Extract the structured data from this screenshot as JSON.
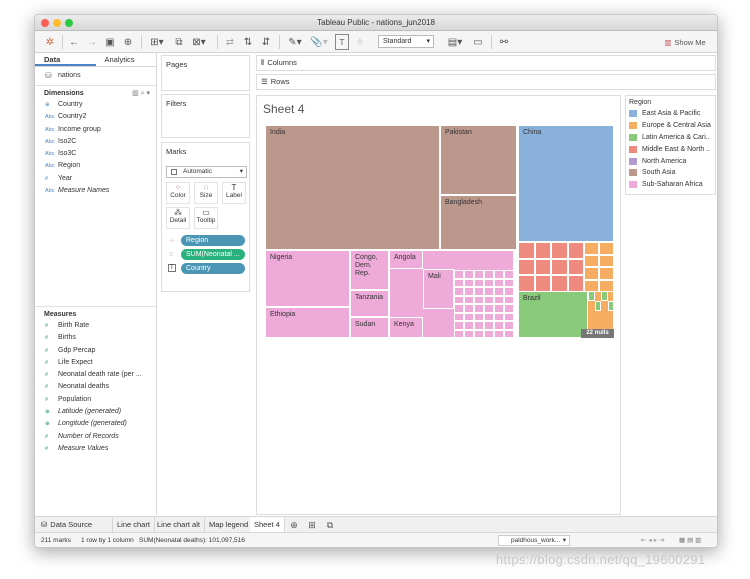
{
  "window": {
    "title": "Tableau Public - nations_jun2018"
  },
  "toolbar": {
    "mark_type_select": "Standard",
    "show_me_label": "Show Me"
  },
  "left_pane": {
    "tabs": [
      "Data",
      "Analytics"
    ],
    "datasource": "nations",
    "dimensions_title": "Dimensions",
    "dimensions": [
      {
        "icon": "globe-icon",
        "type": "geo",
        "label": "Country"
      },
      {
        "icon": "abc-icon",
        "type": "abc",
        "label": "Country2"
      },
      {
        "icon": "abc-icon",
        "type": "abc",
        "label": "Income group"
      },
      {
        "icon": "abc-icon",
        "type": "abc",
        "label": "Iso2C"
      },
      {
        "icon": "abc-icon",
        "type": "abc",
        "label": "Iso3C"
      },
      {
        "icon": "abc-icon",
        "type": "abc",
        "label": "Region"
      },
      {
        "icon": "number-icon",
        "type": "num",
        "label": "Year"
      },
      {
        "icon": "abc-icon",
        "type": "abc",
        "label": "Measure Names"
      }
    ],
    "measures_title": "Measures",
    "measures": [
      {
        "icon": "number-icon",
        "type": "num",
        "label": "Birth Rate"
      },
      {
        "icon": "number-icon",
        "type": "num",
        "label": "Births"
      },
      {
        "icon": "number-icon",
        "type": "num",
        "label": "Gdp Percap"
      },
      {
        "icon": "number-icon",
        "type": "num",
        "label": "Life Expect"
      },
      {
        "icon": "number-icon",
        "type": "num",
        "label": "Neonatal death rate (per ..."
      },
      {
        "icon": "number-icon",
        "type": "num",
        "label": "Neonatal deaths"
      },
      {
        "icon": "number-icon",
        "type": "num",
        "label": "Population"
      },
      {
        "icon": "globe-icon",
        "type": "geo",
        "label": "Latitude (generated)"
      },
      {
        "icon": "globe-icon",
        "type": "geo",
        "label": "Longitude (generated)"
      },
      {
        "icon": "number-icon",
        "type": "num",
        "label": "Number of Records"
      },
      {
        "icon": "number-icon",
        "type": "num",
        "label": "Measure Values"
      }
    ]
  },
  "cards": {
    "pages": "Pages",
    "filters": "Filters",
    "marks": "Marks",
    "mark_type": "Automatic",
    "mark_buttons": [
      "Color",
      "Size",
      "Label",
      "Detail",
      "Tooltip"
    ],
    "pills": [
      {
        "label": "Region",
        "color": "#4a96b4"
      },
      {
        "label": "SUM(Neonatal ...",
        "color": "#2bb07f"
      },
      {
        "label": "Country",
        "color": "#4a96b4"
      }
    ]
  },
  "shelves": {
    "columns": "Columns",
    "rows": "Rows"
  },
  "view": {
    "sheet_title": "Sheet 4",
    "tiles": [
      {
        "label": "India",
        "color": "#bc978c"
      },
      {
        "label": "Pakistan",
        "color": "#bc978c"
      },
      {
        "label": "Bangladesh",
        "color": "#bc978c"
      },
      {
        "label": "China",
        "color": "#8ab0dc"
      },
      {
        "label": "Nigeria",
        "color": "#eeaad8"
      },
      {
        "label": "Ethiopia",
        "color": "#eeaad8"
      },
      {
        "label": "Congo, Dem. Rep.",
        "color": "#eeaad8"
      },
      {
        "label": "Tanzania",
        "color": "#eeaad8"
      },
      {
        "label": "Sudan",
        "color": "#eeaad8"
      },
      {
        "label": "Angola",
        "color": "#eeaad8"
      },
      {
        "label": "Mali",
        "color": "#eeaad8"
      },
      {
        "label": "Kenya",
        "color": "#eeaad8"
      },
      {
        "label": "Brazil",
        "color": "#88c97a"
      }
    ],
    "nulls_badge": "22 nulls"
  },
  "legend": {
    "title": "Region",
    "items": [
      {
        "label": "East Asia & Pacific",
        "color": "#8ab0dc"
      },
      {
        "label": "Europe & Central Asia",
        "color": "#f6ad62"
      },
      {
        "label": "Latin America & Cari..",
        "color": "#88c97a"
      },
      {
        "label": "Middle East & North ..",
        "color": "#ef8a7e"
      },
      {
        "label": "North America",
        "color": "#b39bd2"
      },
      {
        "label": "South Asia",
        "color": "#bc978c"
      },
      {
        "label": "Sub-Saharan Africa",
        "color": "#eeaad8"
      }
    ]
  },
  "sheet_tabs": [
    "Data Source",
    "Line chart",
    "Line chart alt",
    "Map legend",
    "Sheet 4"
  ],
  "status": {
    "marks": "211 marks",
    "rows_cols": "1 row by 1 column",
    "sum": "SUM(Neonatal deaths): 101,097,516",
    "user": "paldhous_work..."
  },
  "watermark": "https://blog.csdn.net/qq_19600291"
}
